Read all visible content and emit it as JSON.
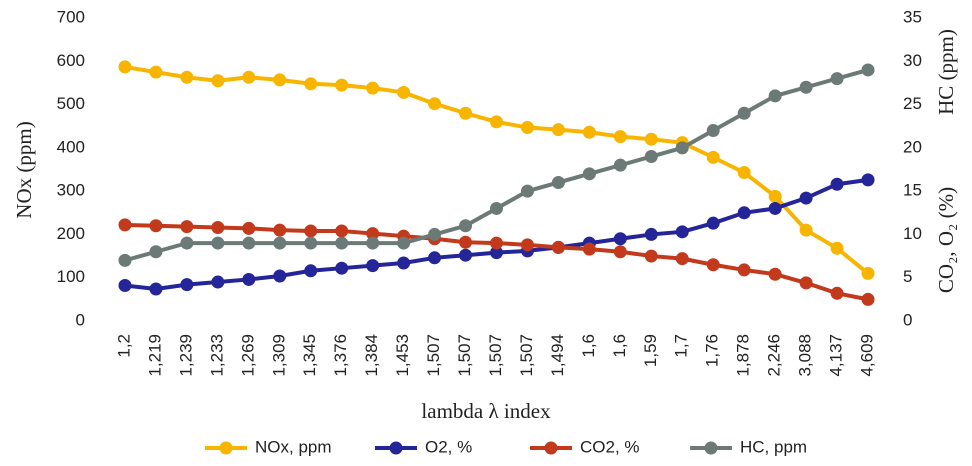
{
  "chart_data": {
    "type": "line",
    "xlabel": "lambda λ index",
    "ylabel": "NOx  (ppm)",
    "y2label": [
      "CO₂, O₂ (%)",
      "HC  (ppm)"
    ],
    "categories": [
      "1,2",
      "1,219",
      "1,239",
      "1,233",
      "1,269",
      "1,309",
      "1,345",
      "1,376",
      "1,384",
      "1,453",
      "1,507",
      "1,507",
      "1,507",
      "1,507",
      "1,494",
      "1,6",
      "1,6",
      "1,59",
      "1,7",
      "1,76",
      "1,878",
      "2,246",
      "3,088",
      "4,137",
      "4,609"
    ],
    "series": [
      {
        "name": "NOx, ppm",
        "color": "#f7b500",
        "values": [
          587,
          575,
          563,
          555,
          563,
          557,
          548,
          545,
          538,
          528,
          502,
          480,
          460,
          447,
          442,
          436,
          426,
          420,
          412,
          378,
          343,
          288,
          210,
          168,
          110
        ]
      },
      {
        "name": "O2, %",
        "color": "#25259a",
        "axis": "y2",
        "values": [
          4.1,
          3.7,
          4.2,
          4.5,
          4.8,
          5.2,
          5.8,
          6.1,
          6.4,
          6.7,
          7.3,
          7.6,
          7.9,
          8.1,
          8.5,
          9.0,
          9.5,
          10.0,
          10.3,
          11.3,
          12.5,
          13.0,
          14.2,
          15.8,
          16.3
        ]
      },
      {
        "name": "CO2, %",
        "color": "#c3391c",
        "axis": "y2",
        "values": [
          11.1,
          11.0,
          10.9,
          10.8,
          10.7,
          10.5,
          10.4,
          10.4,
          10.1,
          9.8,
          9.5,
          9.1,
          9.0,
          8.8,
          8.5,
          8.3,
          8.0,
          7.5,
          7.2,
          6.5,
          5.9,
          5.4,
          4.4,
          3.2,
          2.5
        ]
      },
      {
        "name": "HC, ppm",
        "color": "#6c7a77",
        "axis": "y2",
        "values": [
          7,
          8,
          9,
          9,
          9,
          9,
          9,
          9,
          9,
          9,
          10,
          11,
          13,
          15,
          16,
          17,
          18,
          19,
          20,
          22,
          24,
          26,
          27,
          28,
          29
        ]
      }
    ],
    "ylim": [
      0,
      700
    ],
    "yticks": [
      0,
      100,
      200,
      300,
      400,
      500,
      600,
      700
    ],
    "y2lim": [
      0,
      35
    ],
    "y2ticks": [
      0,
      5,
      10,
      15,
      20,
      25,
      30,
      35
    ],
    "grid": false
  }
}
